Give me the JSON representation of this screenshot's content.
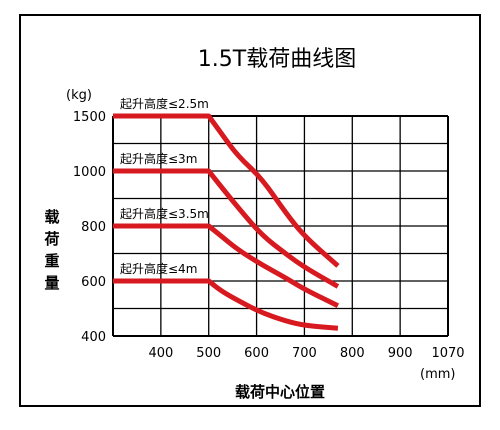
{
  "chart_data": {
    "type": "line",
    "title": "1.5T载荷曲线图",
    "ylabel": "载荷重量",
    "yunit": "(kg)",
    "xlabel": "载荷中心位置",
    "xunit": "(mm)",
    "x_ticks": [
      "400",
      "500",
      "600",
      "700",
      "800",
      "900",
      "1070"
    ],
    "y_ticks": [
      "400",
      "600",
      "800",
      "1000",
      "1500"
    ],
    "grid": true,
    "series": [
      {
        "name": "起升高度≤2.5m",
        "x": [
          300,
          500,
          525,
          560,
          610,
          660,
          700,
          770
        ],
        "y": [
          1500,
          1500,
          1350,
          1140,
          975,
          850,
          762,
          655
        ]
      },
      {
        "name": "起升高度≤3m",
        "x": [
          300,
          500,
          525,
          560,
          610,
          660,
          700,
          770
        ],
        "y": [
          1000,
          1000,
          945,
          870,
          768,
          700,
          650,
          580
        ]
      },
      {
        "name": "起升高度≤3.5m",
        "x": [
          300,
          500,
          525,
          560,
          610,
          660,
          700,
          770
        ],
        "y": [
          800,
          800,
          765,
          715,
          660,
          612,
          570,
          510
        ]
      },
      {
        "name": "起升高度≤4m",
        "x": [
          300,
          500,
          525,
          560,
          610,
          660,
          700,
          770
        ],
        "y": [
          600,
          600,
          565,
          530,
          485,
          455,
          438,
          428
        ]
      }
    ],
    "line_color": "#d71920"
  }
}
